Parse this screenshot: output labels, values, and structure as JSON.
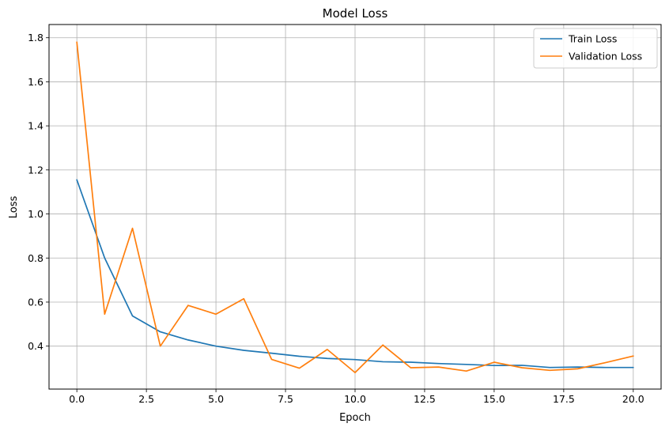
{
  "chart_data": {
    "type": "line",
    "title": "Model Loss",
    "xlabel": "Epoch",
    "ylabel": "Loss",
    "xlim": [
      -1.0,
      21.0
    ],
    "ylim": [
      0.205,
      1.86
    ],
    "xticks": [
      0.0,
      2.5,
      5.0,
      7.5,
      10.0,
      12.5,
      15.0,
      17.5,
      20.0
    ],
    "xtick_labels": [
      "0.0",
      "2.5",
      "5.0",
      "7.5",
      "10.0",
      "12.5",
      "15.0",
      "17.5",
      "20.0"
    ],
    "yticks": [
      0.4,
      0.6,
      0.8,
      1.0,
      1.2,
      1.4,
      1.6,
      1.8
    ],
    "ytick_labels": [
      "0.4",
      "0.6",
      "0.8",
      "1.0",
      "1.2",
      "1.4",
      "1.6",
      "1.8"
    ],
    "grid": true,
    "legend_position": "top-right",
    "x": [
      0,
      1,
      2,
      3,
      4,
      5,
      6,
      7,
      8,
      9,
      10,
      11,
      12,
      13,
      14,
      15,
      16,
      17,
      18,
      19,
      20
    ],
    "series": [
      {
        "name": "Train Loss",
        "color": "#1f77b4",
        "values": [
          1.155,
          0.8,
          0.537,
          0.465,
          0.428,
          0.4,
          0.381,
          0.368,
          0.354,
          0.344,
          0.339,
          0.329,
          0.327,
          0.321,
          0.317,
          0.312,
          0.313,
          0.303,
          0.305,
          0.303,
          0.303
        ]
      },
      {
        "name": "Validation Loss",
        "color": "#ff7f0e",
        "values": [
          1.78,
          0.545,
          0.935,
          0.4,
          0.585,
          0.545,
          0.615,
          0.34,
          0.3,
          0.385,
          0.28,
          0.405,
          0.302,
          0.305,
          0.287,
          0.327,
          0.302,
          0.29,
          0.297,
          0.325,
          0.355
        ]
      }
    ]
  }
}
